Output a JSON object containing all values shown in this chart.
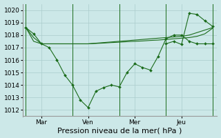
{
  "background_color": "#cce8e8",
  "grid_color": "#aacccc",
  "line_color": "#1a6b1a",
  "marker_color": "#1a6b1a",
  "ylim": [
    1011.5,
    1020.5
  ],
  "yticks": [
    1012,
    1013,
    1014,
    1015,
    1016,
    1017,
    1018,
    1019,
    1020
  ],
  "xlabel": "Pression niveau de la mer( hPa )",
  "xlabel_fontsize": 8,
  "tick_fontsize": 6.5,
  "day_labels": [
    "Mar",
    "Ven",
    "Mer",
    "Jeu"
  ],
  "day_positions": [
    24,
    96,
    168,
    240
  ],
  "vline_positions": [
    0,
    72,
    144,
    216,
    288
  ],
  "series1_x": [
    0,
    12,
    24,
    36,
    48,
    60,
    72,
    84,
    96,
    108,
    120,
    132,
    144,
    156,
    168,
    180,
    192,
    204,
    216,
    228,
    240,
    252,
    264,
    276,
    288
  ],
  "series1_y": [
    1018.6,
    1018.1,
    1017.3,
    1017.0,
    1016.0,
    1014.8,
    1014.0,
    1012.8,
    1012.2,
    1013.5,
    1013.8,
    1014.0,
    1013.85,
    1015.0,
    1015.7,
    1015.4,
    1015.2,
    1016.3,
    1017.7,
    1018.0,
    1018.0,
    1017.5,
    1017.3,
    1017.3,
    1017.3
  ],
  "series2_x": [
    0,
    12,
    24,
    36,
    48,
    60,
    72,
    84,
    96,
    108,
    120,
    132,
    144,
    156,
    168,
    180,
    192,
    204,
    216,
    228,
    240,
    252,
    264,
    276,
    288
  ],
  "series2_y": [
    1018.6,
    1017.8,
    1017.3,
    1017.3,
    1017.3,
    1017.3,
    1017.3,
    1017.3,
    1017.3,
    1017.35,
    1017.4,
    1017.45,
    1017.5,
    1017.55,
    1017.6,
    1017.65,
    1017.7,
    1017.75,
    1017.8,
    1017.85,
    1017.9,
    1018.0,
    1018.2,
    1018.4,
    1018.6
  ],
  "series3_x": [
    0,
    12,
    24,
    36,
    48,
    60,
    72,
    84,
    96,
    108,
    120,
    132,
    144,
    156,
    168,
    180,
    192,
    204,
    216,
    228,
    240,
    252,
    264,
    276,
    288
  ],
  "series3_y": [
    1018.6,
    1017.5,
    1017.3,
    1017.3,
    1017.3,
    1017.3,
    1017.3,
    1017.3,
    1017.3,
    1017.33,
    1017.36,
    1017.4,
    1017.43,
    1017.47,
    1017.5,
    1017.53,
    1017.57,
    1017.6,
    1017.65,
    1017.7,
    1017.75,
    1017.8,
    1017.9,
    1018.1,
    1018.55
  ],
  "series4_x": [
    216,
    228,
    240,
    252,
    264,
    276,
    288
  ],
  "series4_y": [
    1017.3,
    1017.5,
    1017.25,
    1019.75,
    1019.65,
    1019.15,
    1018.7
  ],
  "xlim": [
    -5,
    295
  ]
}
